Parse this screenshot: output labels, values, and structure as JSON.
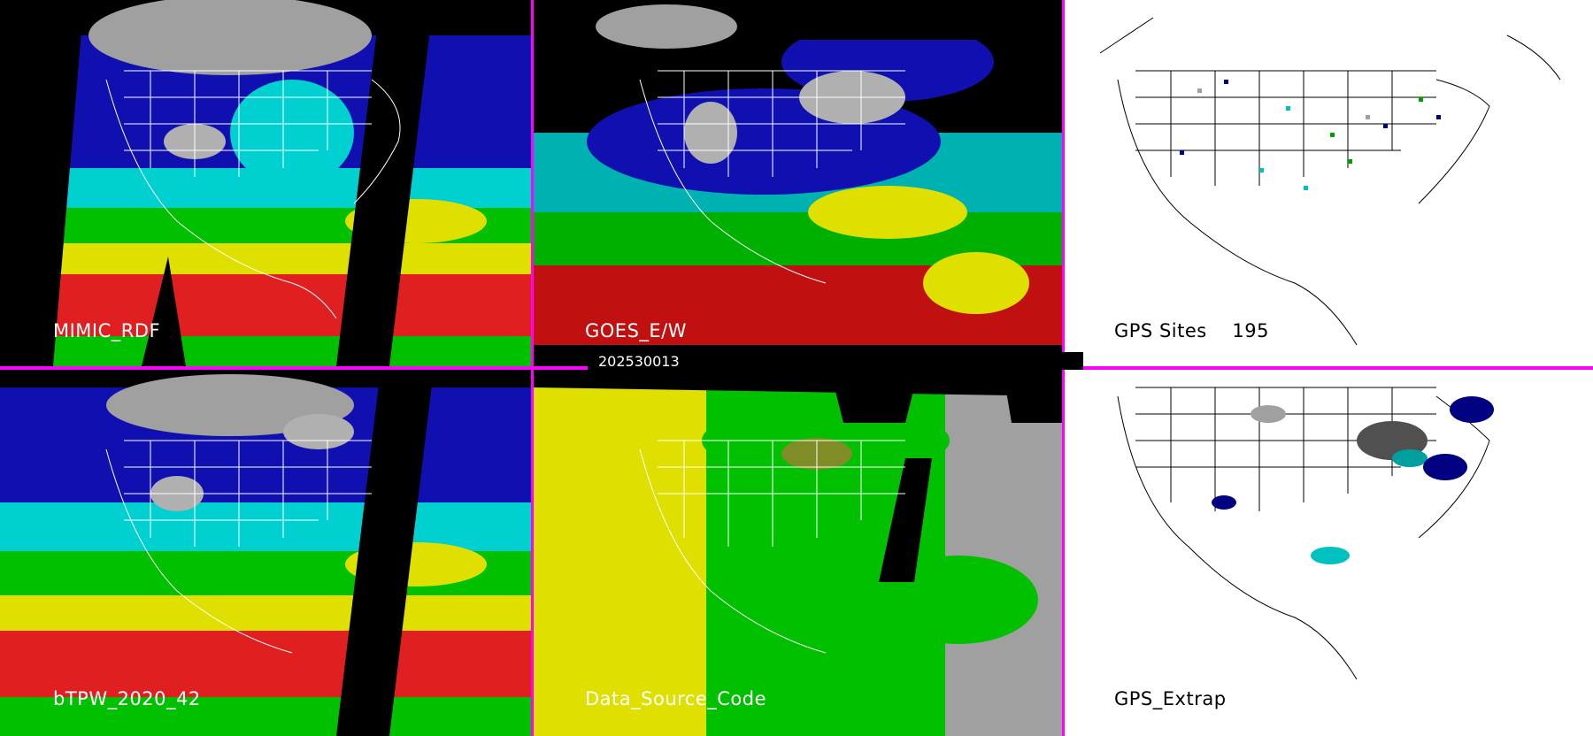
{
  "panels": {
    "mimic_rdf": {
      "label": "MIMIC_RDF"
    },
    "goes_ew": {
      "label": "GOES_E/W"
    },
    "gps_sites": {
      "label": "GPS Sites",
      "count": "195"
    },
    "btpw": {
      "label": "bTPW_2020_42"
    },
    "data_source": {
      "label": "Data_Source_Code"
    },
    "gps_extrap": {
      "label": "GPS_Extrap"
    }
  },
  "timestamp": "202530013",
  "colors": {
    "separator": "#ff00ff",
    "tpw_scale": [
      "#ff0000",
      "#ffff00",
      "#00c000",
      "#00e0e0",
      "#0000c0",
      "#a0a0a0"
    ],
    "source_codes": [
      "#e0e000",
      "#00c000",
      "#a0a0a0",
      "#000000"
    ]
  }
}
